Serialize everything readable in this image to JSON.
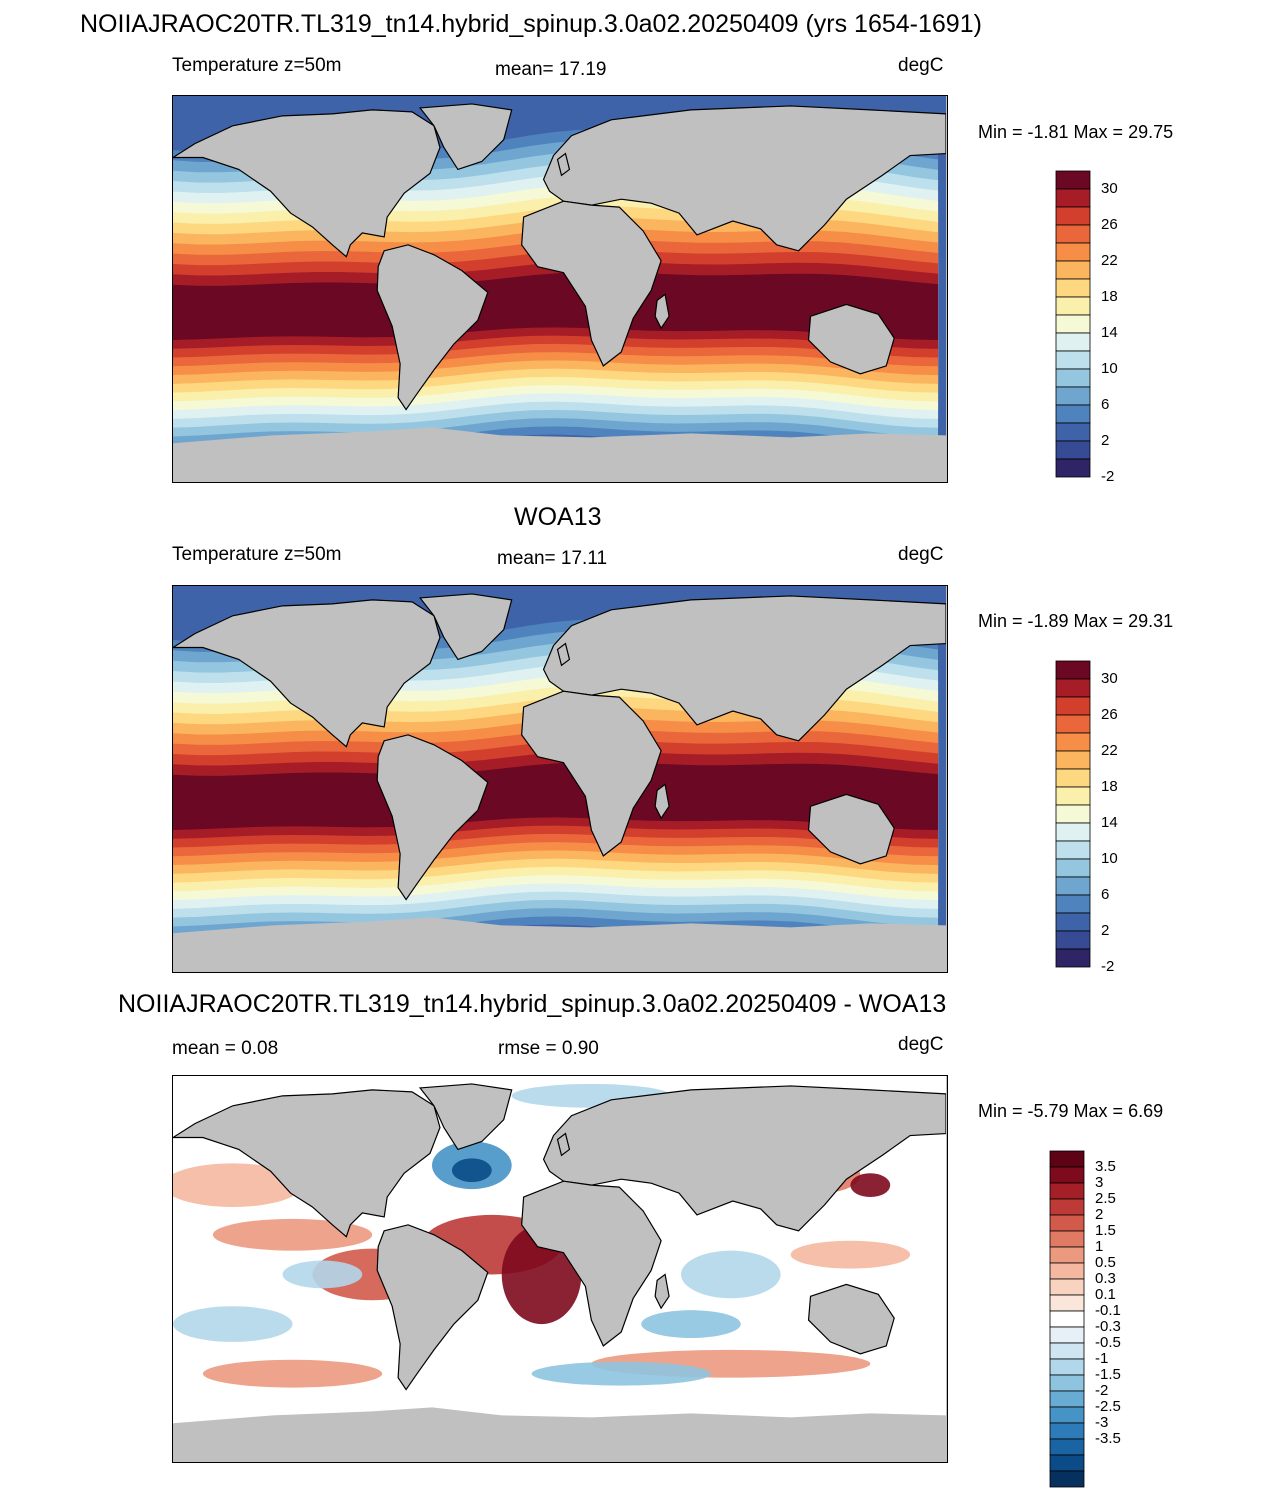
{
  "title_top": "NOIIAJRAOC20TR.TL319_tn14.hybrid_spinup.3.0a02.20250409 (yrs 1654-1691)",
  "title_mid": "WOA13",
  "title_bot": "NOIIAJRAOC20TR.TL319_tn14.hybrid_spinup.3.0a02.20250409 - WOA13",
  "panels": [
    {
      "left_label": "Temperature z=50m",
      "stat_label": "mean=  17.19",
      "units": "degC",
      "minmax": "Min =  -1.81 Max =  29.75",
      "kind": "temp",
      "colors": [
        "#2f2465",
        "#374b94",
        "#3f63a8",
        "#4f83bd",
        "#6fa6cf",
        "#95c6df",
        "#bde0ec",
        "#e0f1f2",
        "#f6f9d6",
        "#fbefac",
        "#fdd880",
        "#fbb55f",
        "#f68e48",
        "#e9673a",
        "#d33f2d",
        "#a61d27",
        "#6b0823"
      ],
      "ticks": [
        "30",
        "26",
        "22",
        "18",
        "14",
        "10",
        "6",
        "2",
        "-2"
      ]
    },
    {
      "left_label": "Temperature z=50m",
      "stat_label": "mean=  17.11",
      "units": "degC",
      "minmax": "Min =  -1.89 Max =  29.31",
      "kind": "temp",
      "colors": [
        "#2f2465",
        "#374b94",
        "#3f63a8",
        "#4f83bd",
        "#6fa6cf",
        "#95c6df",
        "#bde0ec",
        "#e0f1f2",
        "#f6f9d6",
        "#fbefac",
        "#fdd880",
        "#fbb55f",
        "#f68e48",
        "#e9673a",
        "#d33f2d",
        "#a61d27",
        "#6b0823"
      ],
      "ticks": [
        "30",
        "26",
        "22",
        "18",
        "14",
        "10",
        "6",
        "2",
        "-2"
      ]
    },
    {
      "left_label": "mean =   0.08",
      "stat_label": "rmse =   0.90",
      "units": "degC",
      "minmax": "Min =  -5.79 Max =   6.69",
      "kind": "diff",
      "colors": [
        "#06305d",
        "#0b4b87",
        "#1a64a3",
        "#2d7bb8",
        "#4693c6",
        "#68acd4",
        "#8ec4e0",
        "#b2d7ea",
        "#cfe5f1",
        "#e6f0f6",
        "#ffffff",
        "#fbe6dc",
        "#f8d3c0",
        "#f4b8a1",
        "#ec9a7f",
        "#e07a63",
        "#d15a4a",
        "#bd3a36",
        "#a51f28",
        "#7e0a1e",
        "#5e0216"
      ],
      "ticks": [
        "3.5",
        "3",
        "2.5",
        "2",
        "1.5",
        "1",
        "0.5",
        "0.3",
        "0.1",
        "-0.1",
        "-0.3",
        "-0.5",
        "-1",
        "-1.5",
        "-2",
        "-2.5",
        "-3",
        "-3.5"
      ]
    }
  ]
}
